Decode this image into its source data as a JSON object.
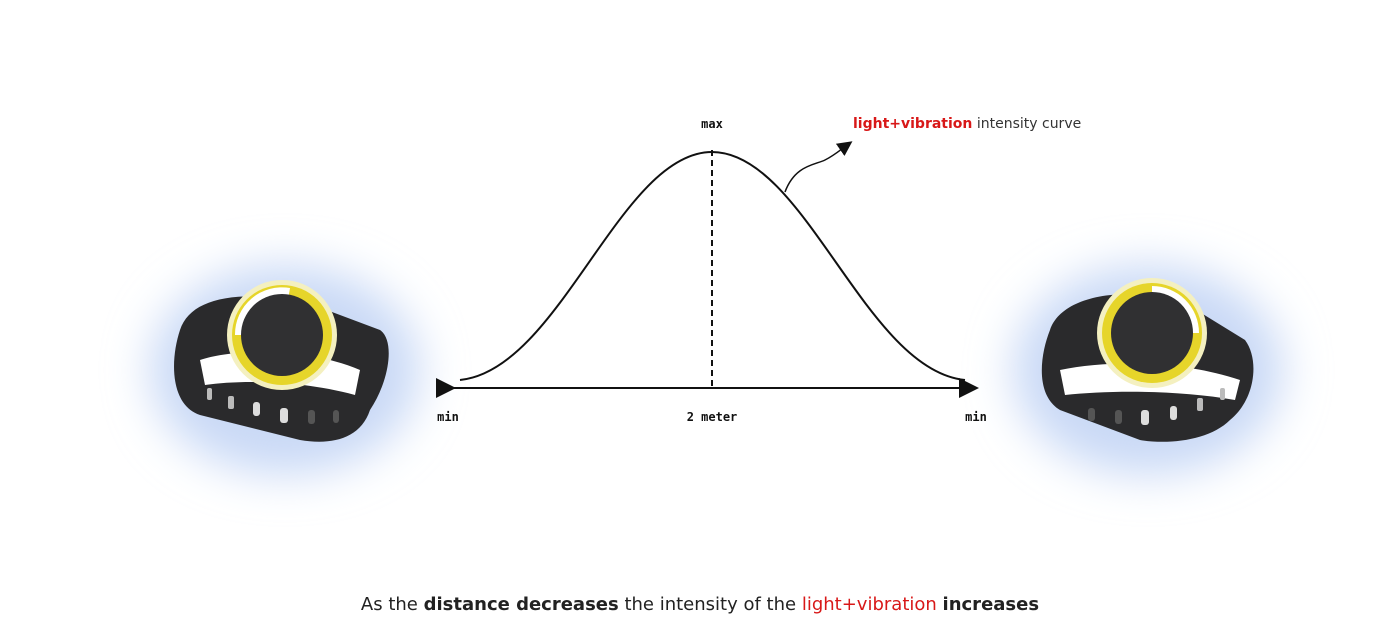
{
  "labels": {
    "peak": "max",
    "left": "min",
    "center": "2 meter",
    "right": "min"
  },
  "annotation": {
    "highlight": "light+vibration",
    "text": "intensity curve"
  },
  "caption": {
    "parts": [
      "As the",
      "distance decreases",
      "the intensity of the",
      "light+vibration",
      "increases"
    ]
  }
}
